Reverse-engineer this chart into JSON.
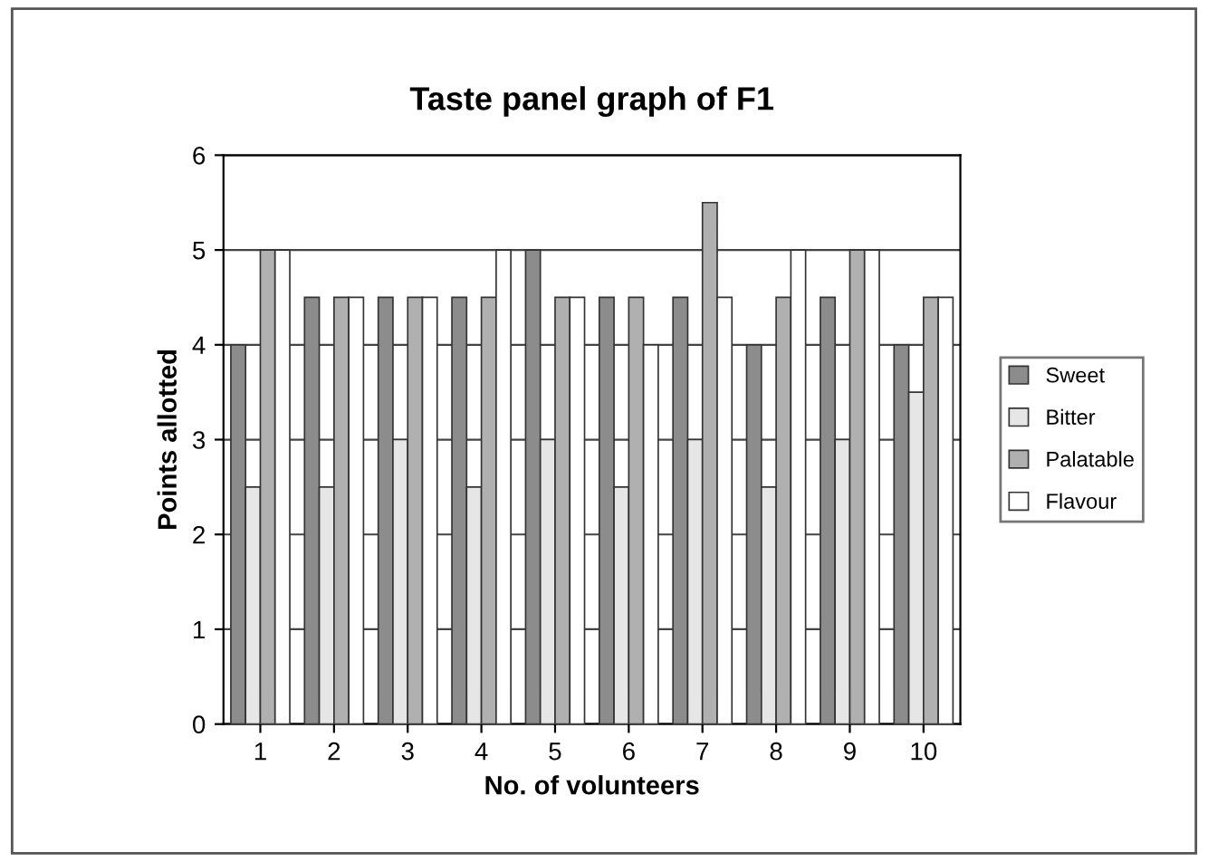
{
  "chart_data": {
    "type": "bar",
    "title": "Taste panel graph of F1",
    "xlabel": "No. of volunteers",
    "ylabel": "Points allotted",
    "categories": [
      "1",
      "2",
      "3",
      "4",
      "5",
      "6",
      "7",
      "8",
      "9",
      "10"
    ],
    "series": [
      {
        "name": "Sweet",
        "color": "#8c8c8c",
        "values": [
          4,
          4.5,
          4.5,
          4.5,
          5,
          4.5,
          4.5,
          4,
          4.5,
          4
        ]
      },
      {
        "name": "Bitter",
        "color": "#e6e6e6",
        "values": [
          2.5,
          2.5,
          3,
          2.5,
          3,
          2.5,
          3,
          2.5,
          3,
          3.5
        ]
      },
      {
        "name": "Palatable",
        "color": "#b0b0b0",
        "values": [
          5,
          4.5,
          4.5,
          4.5,
          4.5,
          4.5,
          5.5,
          4.5,
          5,
          4.5
        ]
      },
      {
        "name": "Flavour",
        "color": "#ffffff",
        "values": [
          5,
          4.5,
          4.5,
          5,
          4.5,
          4,
          4.5,
          5,
          5,
          4.5
        ]
      }
    ],
    "ylim": [
      0,
      6
    ],
    "yticks": [
      0,
      1,
      2,
      3,
      4,
      5,
      6
    ],
    "grid": "y",
    "legend": "right"
  }
}
